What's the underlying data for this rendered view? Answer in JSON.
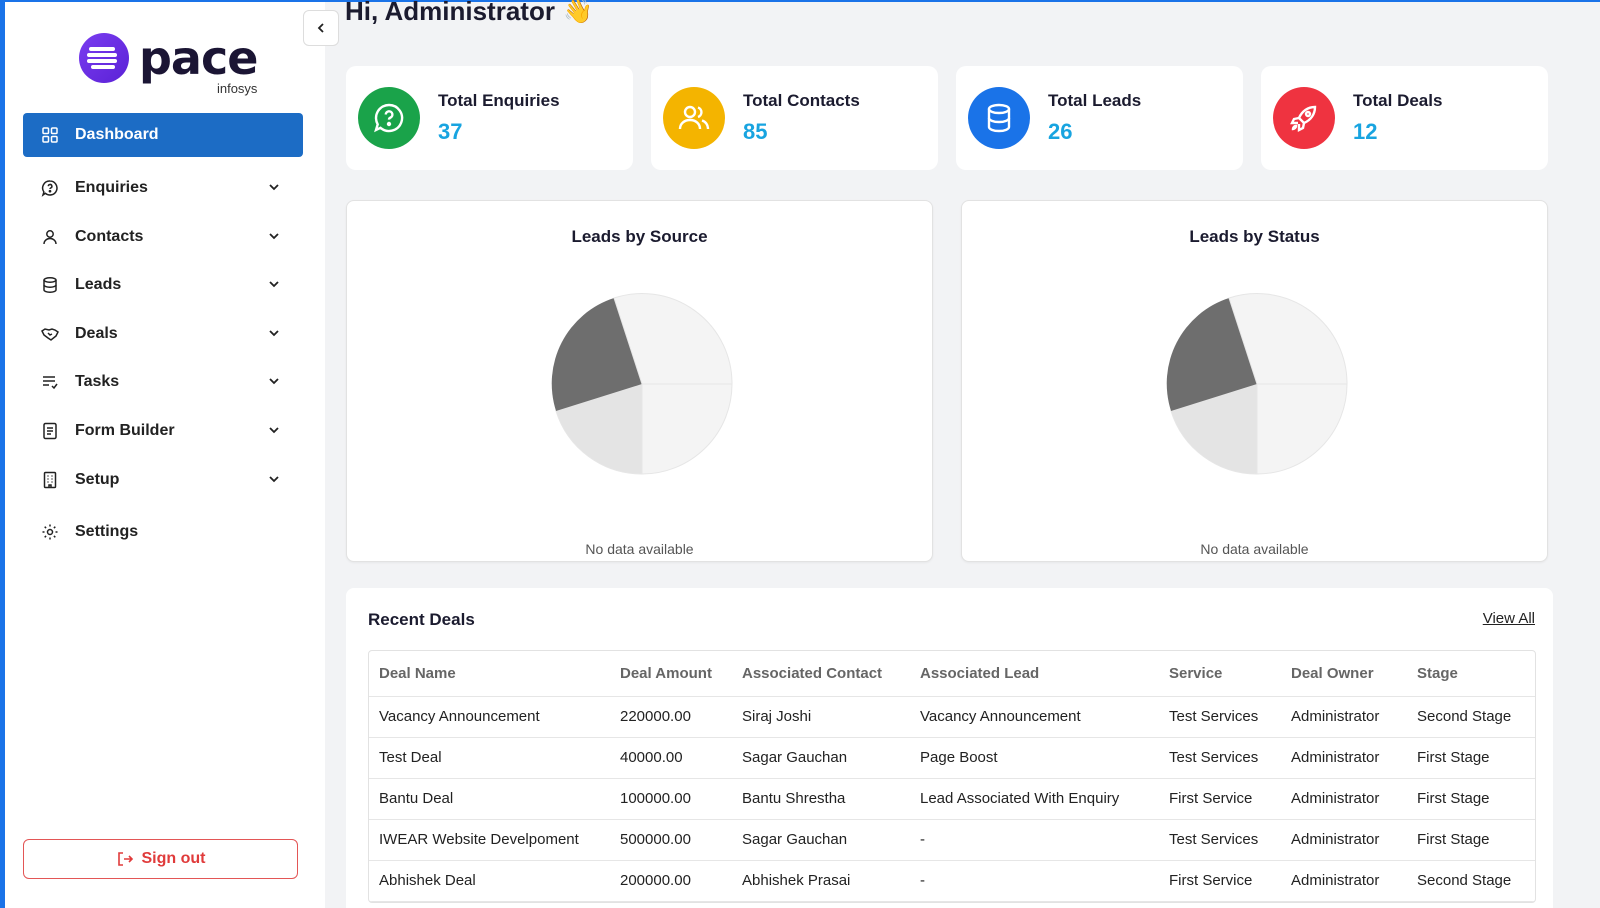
{
  "app": {
    "logo_word": "pace",
    "logo_sub": "infosys"
  },
  "sidebar": {
    "items": [
      {
        "label": "Dashboard",
        "icon": "grid-icon",
        "active": true
      },
      {
        "label": "Enquiries",
        "icon": "chat-question-icon",
        "expandable": true
      },
      {
        "label": "Contacts",
        "icon": "user-icon",
        "expandable": true
      },
      {
        "label": "Leads",
        "icon": "database-icon",
        "expandable": true
      },
      {
        "label": "Deals",
        "icon": "handshake-icon",
        "expandable": true
      },
      {
        "label": "Tasks",
        "icon": "list-check-icon",
        "expandable": true
      },
      {
        "label": "Form Builder",
        "icon": "form-icon",
        "expandable": true
      },
      {
        "label": "Setup",
        "icon": "building-icon",
        "expandable": true
      },
      {
        "label": "Settings",
        "icon": "gear-icon",
        "expandable": false
      }
    ],
    "signout_label": "Sign out"
  },
  "header": {
    "greeting": "Hi, Administrator",
    "wave": "👋"
  },
  "stats": [
    {
      "label": "Total Enquiries",
      "value": "37",
      "color": "#1aa34a",
      "icon": "chat-question-icon"
    },
    {
      "label": "Total Contacts",
      "value": "85",
      "color": "#f4b400",
      "icon": "users-icon"
    },
    {
      "label": "Total Leads",
      "value": "26",
      "color": "#1a73e8",
      "icon": "database-icon"
    },
    {
      "label": "Total Deals",
      "value": "12",
      "color": "#ef3340",
      "icon": "rocket-icon"
    }
  ],
  "charts": {
    "source": {
      "title": "Leads by Source",
      "empty_text": "No data available"
    },
    "status": {
      "title": "Leads by Status",
      "empty_text": "No data available"
    }
  },
  "recent_deals": {
    "title": "Recent Deals",
    "view_all": "View All",
    "columns": [
      "Deal Name",
      "Deal Amount",
      "Associated Contact",
      "Associated Lead",
      "Service",
      "Deal Owner",
      "Stage"
    ],
    "rows": [
      [
        "Vacancy Announcement",
        "220000.00",
        "Siraj Joshi",
        "Vacancy Announcement",
        "Test Services",
        "Administrator",
        "Second Stage"
      ],
      [
        "Test Deal",
        "40000.00",
        "Sagar Gauchan",
        "Page Boost",
        "Test Services",
        "Administrator",
        "First Stage"
      ],
      [
        "Bantu Deal",
        "100000.00",
        "Bantu Shrestha",
        "Lead Associated With Enquiry",
        "First Service",
        "Administrator",
        "First Stage"
      ],
      [
        "IWEAR Website Develpoment",
        "500000.00",
        "Sagar Gauchan",
        "-",
        "Test Services",
        "Administrator",
        "First Stage"
      ],
      [
        "Abhishek Deal",
        "200000.00",
        "Abhishek Prasai",
        "-",
        "First Service",
        "Administrator",
        "Second Stage"
      ]
    ]
  },
  "colors": {
    "accent": "#1c6cc5",
    "value_blue": "#18a4e0",
    "signout_red": "#e03b3b"
  }
}
